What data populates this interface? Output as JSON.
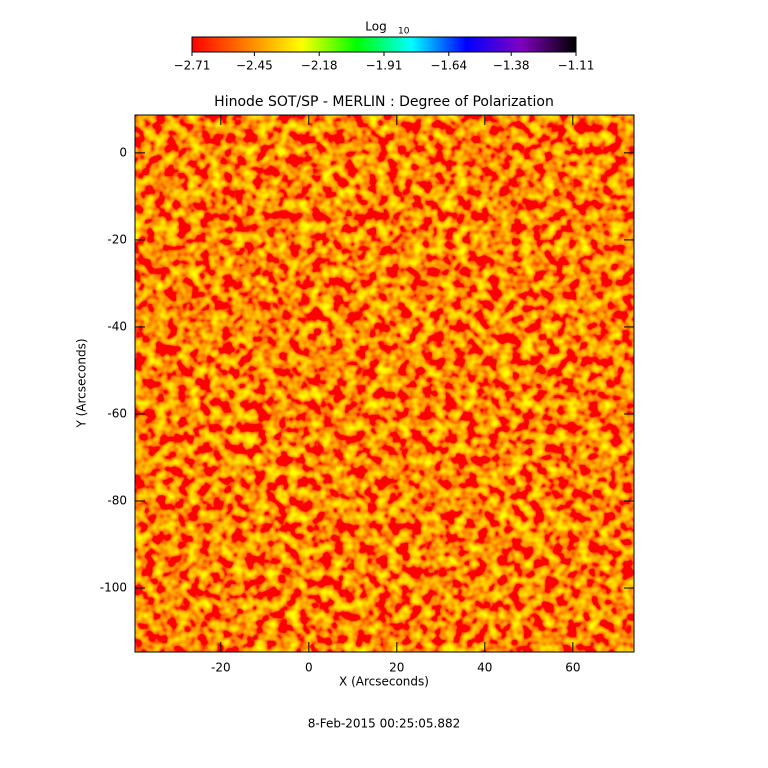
{
  "chart_data": {
    "type": "heatmap",
    "title": "Hinode SOT/SP - MERLIN : Degree of Polarization",
    "xlabel": "X (Arcseconds)",
    "ylabel": "Y (Arcseconds)",
    "xlim": [
      -39.5,
      73.9
    ],
    "xticks": [
      -20,
      0,
      20,
      40,
      60
    ],
    "ylim": [
      -114.7,
      8.7
    ],
    "yticks": [
      0,
      -20,
      -40,
      -60,
      -80,
      -100
    ],
    "colorbar_label": "Log",
    "colorbar_label_sub": "10",
    "clim": [
      -2.71,
      -1.11
    ],
    "colorbar_ticks": [
      {
        "value": -2.71,
        "label": "−2.71"
      },
      {
        "value": -2.45,
        "label": "−2.45"
      },
      {
        "value": -2.18,
        "label": "−2.18"
      },
      {
        "value": -1.91,
        "label": "−1.91"
      },
      {
        "value": -1.64,
        "label": "−1.64"
      },
      {
        "value": -1.38,
        "label": "−1.38"
      },
      {
        "value": -1.11,
        "label": "−1.11"
      }
    ],
    "colormap": [
      "#ff0000",
      "#ff8000",
      "#ffff00",
      "#00ff00",
      "#00ffff",
      "#0000ff",
      "#8000c0",
      "#000000"
    ],
    "date": "8-Feb-2015 00:25:05.882"
  }
}
